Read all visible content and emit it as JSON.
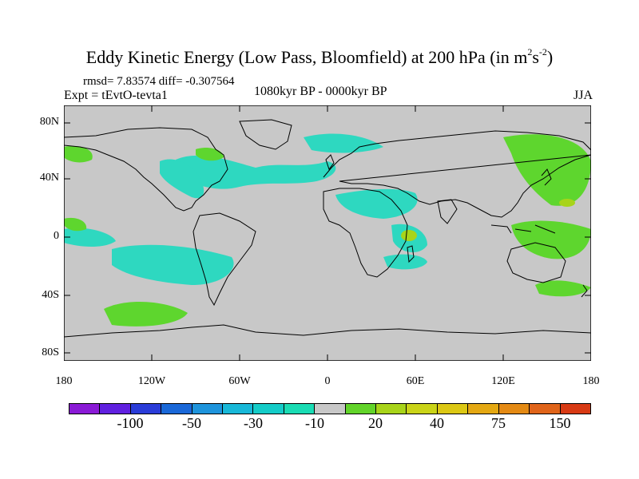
{
  "title": {
    "main": "Eddy Kinetic Energy (Low Pass, Bloomfield) at 200 hPa (in m",
    "sup1": "2",
    "mid": "s",
    "sup2": "-2",
    "end": ")"
  },
  "stats": "rmsd= 7.83574 diff= -0.307564",
  "expt": "Expt = tEvtO-tevta1",
  "period": "1080kyr BP - 0000kyr BP",
  "season": "JJA",
  "lat_ticks": [
    "80N",
    "40N",
    "0",
    "40S",
    "80S"
  ],
  "lon_ticks": [
    "180",
    "120W",
    "60W",
    "0",
    "60E",
    "120E",
    "180"
  ],
  "colorbar": {
    "colors": [
      "#8a1ad6",
      "#6020e0",
      "#2a3cd8",
      "#1a68d8",
      "#1e94dc",
      "#18b8d8",
      "#14ccc8",
      "#1adcb4",
      "#c8c8c8",
      "#62d42a",
      "#a8d41a",
      "#cad418",
      "#dcc814",
      "#e4a812",
      "#e48a14",
      "#e0641a",
      "#d83a14"
    ],
    "labels": [
      "-100",
      "-50",
      "-30",
      "-10",
      "20",
      "40",
      "75",
      "150"
    ]
  },
  "map_colors": {
    "land_bg": "#c8c8c8",
    "neg": "#2ed8c0",
    "neg_dark": "#18c8c8",
    "pos": "#5ed62e",
    "pos_dark": "#a8d41a"
  }
}
